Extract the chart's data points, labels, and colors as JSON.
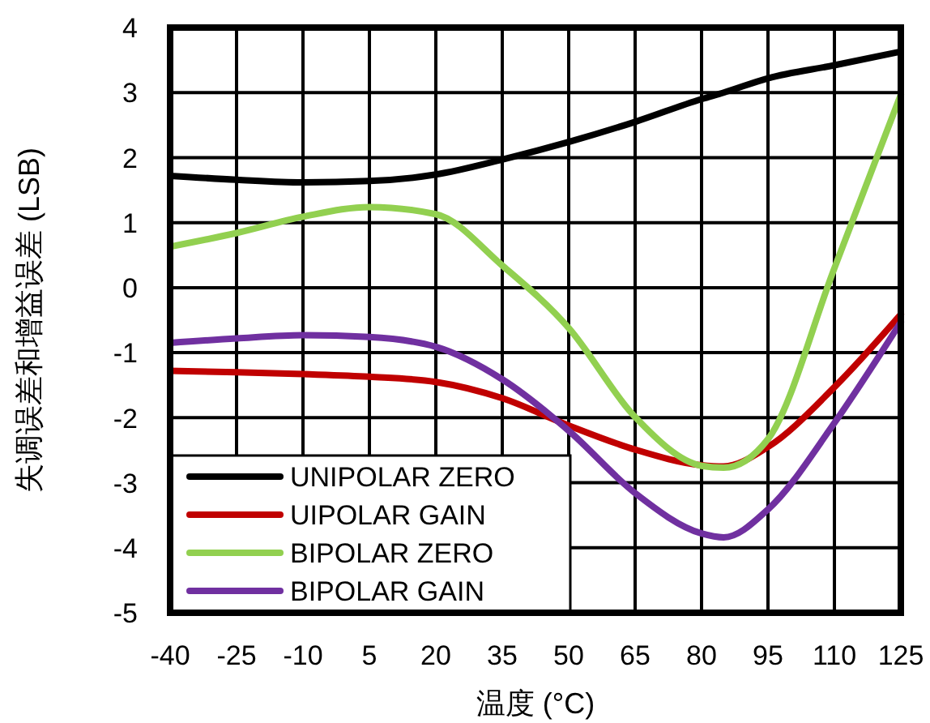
{
  "chart_data": {
    "type": "line",
    "xlabel": "温度 (°C)",
    "ylabel": "失调误差和增益误差 (LSB)",
    "x": [
      -40,
      -25,
      -10,
      5,
      20,
      35,
      50,
      65,
      80,
      85,
      95,
      110,
      125
    ],
    "xlim": [
      -40,
      125
    ],
    "xticks": [
      -40,
      -25,
      -10,
      5,
      20,
      35,
      50,
      65,
      80,
      95,
      110,
      125
    ],
    "ylim": [
      -5,
      4
    ],
    "yticks": [
      -5,
      -4,
      -3,
      -2,
      -1,
      0,
      1,
      2,
      3,
      4
    ],
    "grid": true,
    "legend": "bottom left",
    "marker": "none",
    "line_style": "solid",
    "series": [
      {
        "name": "UNIPOLAR ZERO",
        "color": "#000000",
        "values": [
          1.72,
          1.66,
          1.62,
          1.64,
          1.74,
          1.97,
          2.24,
          2.55,
          2.9,
          3.0,
          3.22,
          3.42,
          3.63
        ]
      },
      {
        "name": "UIPOLAR GAIN",
        "color": "#c00000",
        "values": [
          -1.28,
          -1.3,
          -1.33,
          -1.37,
          -1.45,
          -1.7,
          -2.12,
          -2.49,
          -2.73,
          -2.75,
          -2.45,
          -1.53,
          -0.41
        ]
      },
      {
        "name": "BIPOLAR ZERO",
        "color": "#92d050",
        "values": [
          0.63,
          0.84,
          1.09,
          1.24,
          1.13,
          0.34,
          -0.62,
          -1.99,
          -2.74,
          -2.77,
          -2.33,
          0.3,
          2.97
        ]
      },
      {
        "name": "BIPOLAR GAIN",
        "color": "#7030a0",
        "values": [
          -0.85,
          -0.78,
          -0.73,
          -0.76,
          -0.91,
          -1.41,
          -2.2,
          -3.16,
          -3.78,
          -3.84,
          -3.41,
          -2.08,
          -0.53
        ]
      }
    ]
  }
}
